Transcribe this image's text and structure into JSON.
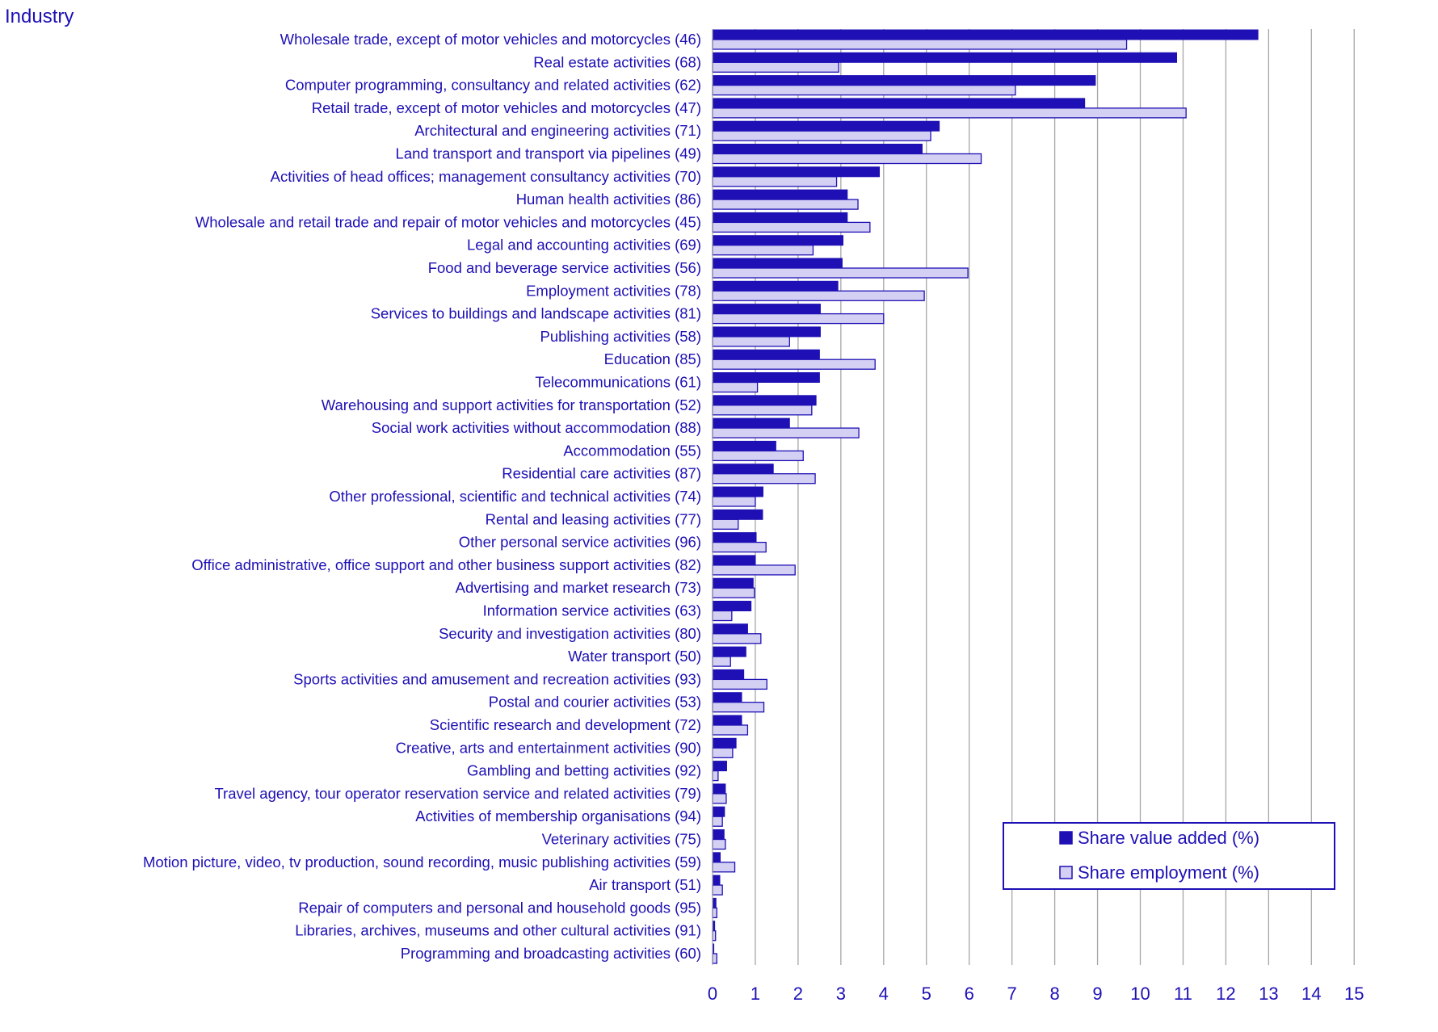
{
  "chart_data": {
    "type": "bar",
    "orientation": "horizontal",
    "ylabel": "Industry",
    "xlabel": "",
    "xlim": [
      0,
      15
    ],
    "x_ticks": [
      "0",
      "1",
      "2",
      "3",
      "4",
      "5",
      "6",
      "7",
      "8",
      "9",
      "10",
      "11",
      "12",
      "13",
      "14",
      "15"
    ],
    "grid": "vertical",
    "legend_position": "bottom-right",
    "categories": [
      "Wholesale trade, except of motor vehicles and motorcycles (46)",
      "Real estate activities (68)",
      "Computer programming, consultancy and related activities (62)",
      "Retail trade, except of motor vehicles and motorcycles (47)",
      "Architectural and engineering activities (71)",
      "Land transport and transport via pipelines (49)",
      "Activities of head offices; management consultancy activities (70)",
      "Human health activities (86)",
      "Wholesale and retail trade and repair of motor vehicles and motorcycles (45)",
      "Legal and accounting activities (69)",
      "Food and beverage service activities (56)",
      "Employment activities (78)",
      "Services to buildings and landscape activities (81)",
      "Publishing activities (58)",
      "Education (85)",
      "Telecommunications (61)",
      "Warehousing and support activities for transportation (52)",
      "Social work activities without accommodation (88)",
      "Accommodation (55)",
      "Residential care activities (87)",
      "Other professional, scientific and technical activities (74)",
      "Rental and leasing activities (77)",
      "Other personal service activities (96)",
      "Office administrative, office support and other business support activities (82)",
      "Advertising and market research (73)",
      "Information service activities (63)",
      "Security and investigation activities (80)",
      "Water transport (50)",
      "Sports activities and amusement and recreation activities (93)",
      "Postal and courier activities (53)",
      "Scientific research and development (72)",
      "Creative, arts and entertainment activities (90)",
      "Gambling and betting activities (92)",
      "Travel agency, tour operator reservation service and related activities (79)",
      "Activities of membership organisations (94)",
      "Veterinary activities (75)",
      "Motion picture, video, tv production, sound recording, music publishing activities (59)",
      "Air transport (51)",
      "Repair of computers and personal and household goods (95)",
      "Libraries, archives, museums and other cultural activities (91)",
      "Programming and broadcasting activities (60)"
    ],
    "series": [
      {
        "name": "Share value added (%)",
        "color": "#1e10b4",
        "values": [
          12.75,
          10.85,
          8.95,
          8.7,
          5.3,
          4.9,
          3.9,
          3.15,
          3.15,
          3.05,
          3.03,
          2.93,
          2.52,
          2.52,
          2.5,
          2.5,
          2.42,
          1.8,
          1.48,
          1.42,
          1.18,
          1.17,
          1.02,
          1.0,
          0.95,
          0.9,
          0.82,
          0.78,
          0.73,
          0.68,
          0.68,
          0.55,
          0.33,
          0.3,
          0.28,
          0.27,
          0.18,
          0.17,
          0.08,
          0.05,
          0.03
        ]
      },
      {
        "name": "Share employment (%)",
        "color": "#d4d0f4",
        "values": [
          9.68,
          2.95,
          7.08,
          11.07,
          5.1,
          6.28,
          2.9,
          3.4,
          3.68,
          2.35,
          5.97,
          4.95,
          4.0,
          1.8,
          3.8,
          1.05,
          2.32,
          3.42,
          2.12,
          2.4,
          1.0,
          0.6,
          1.25,
          1.93,
          0.98,
          0.45,
          1.13,
          0.42,
          1.27,
          1.2,
          0.82,
          0.47,
          0.13,
          0.32,
          0.23,
          0.3,
          0.52,
          0.23,
          0.1,
          0.07,
          0.1
        ]
      }
    ]
  }
}
